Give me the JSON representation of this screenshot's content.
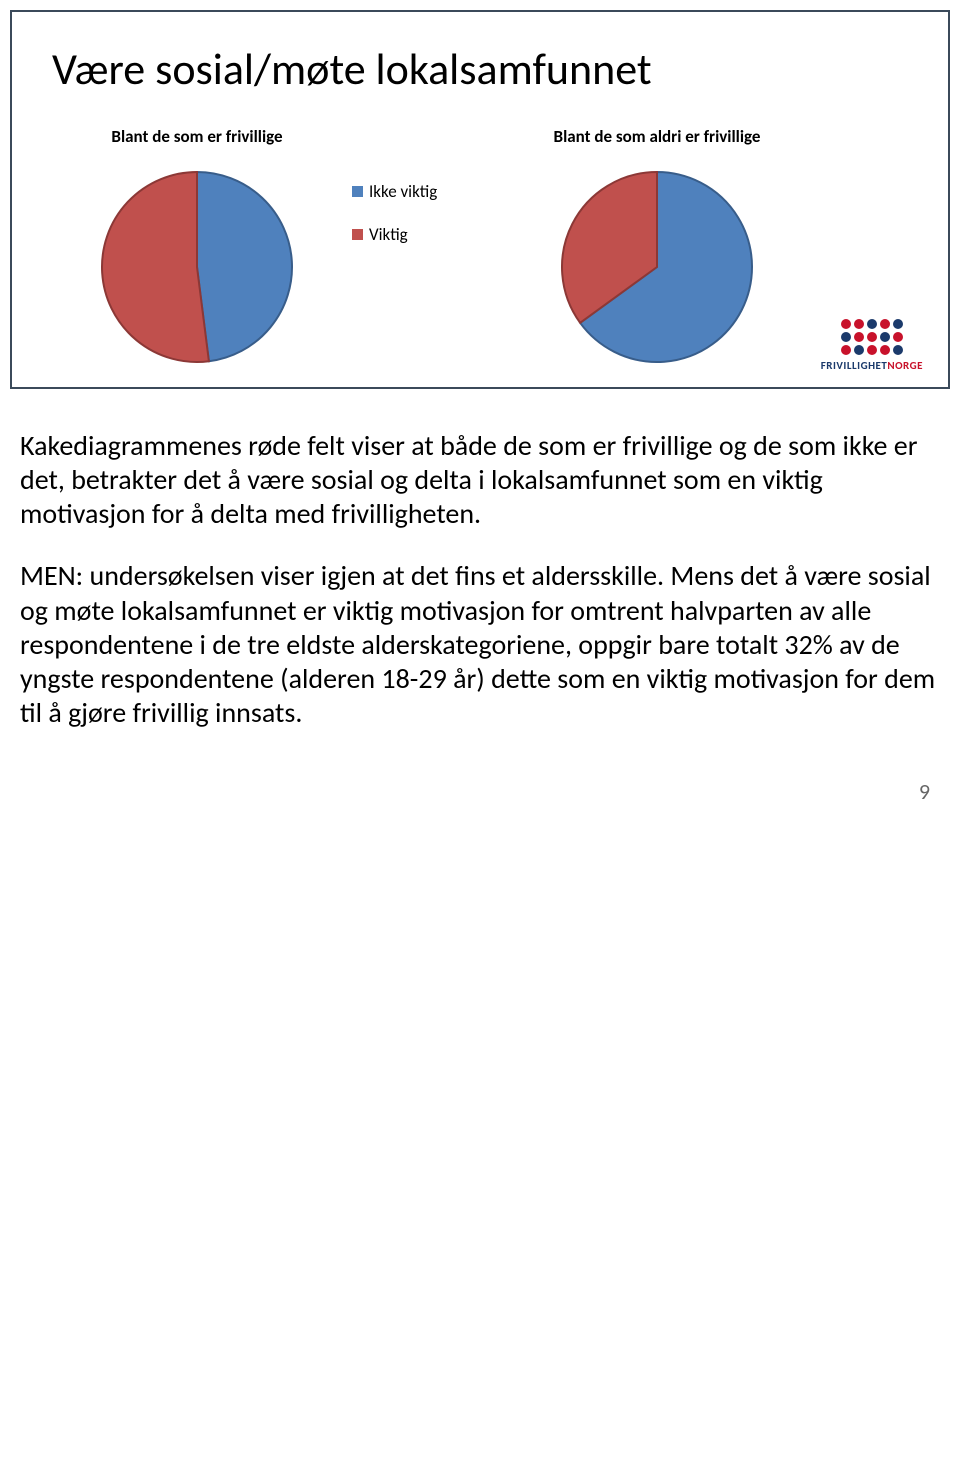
{
  "slide": {
    "title": "Være sosial/møte lokalsamfunnet",
    "title_fontsize": 44,
    "title_color": "#000000",
    "border_color": "#3b4a5a",
    "background": "#ffffff"
  },
  "chart1": {
    "type": "pie",
    "title": "Blant de som er frivillige",
    "title_fontsize": 17,
    "title_weight": 700,
    "values": [
      48,
      52
    ],
    "labels": [
      "Ikke viktig",
      "Viktig"
    ],
    "colors": [
      "#4f81bd",
      "#c0504d"
    ],
    "border_color": "#385d8a",
    "border_color2": "#8c3836",
    "radius": 95,
    "stroke_width": 2
  },
  "chart2": {
    "type": "pie",
    "title": "Blant de som aldri er frivillige",
    "title_fontsize": 17,
    "title_weight": 700,
    "values": [
      65,
      35
    ],
    "labels": [
      "Ikke viktig",
      "Viktig"
    ],
    "colors": [
      "#4f81bd",
      "#c0504d"
    ],
    "border_color": "#385d8a",
    "border_color2": "#8c3836",
    "radius": 95,
    "stroke_width": 2
  },
  "legend": {
    "items": [
      {
        "label": "Ikke viktig",
        "color": "#4f81bd"
      },
      {
        "label": "Viktig",
        "color": "#c0504d"
      }
    ],
    "fontsize": 17
  },
  "logo": {
    "text_part1": "FRIVILLIGHET",
    "text_part2": "NORGE",
    "color1": "#1b3a6b",
    "color2": "#c8122b",
    "dot_colors": [
      "#c8122b",
      "#c8122b",
      "#1b3a6b",
      "#c8122b",
      "#1b3a6b",
      "#1b3a6b",
      "#c8122b",
      "#c8122b",
      "#1b3a6b",
      "#c8122b",
      "#c8122b",
      "#1b3a6b",
      "#c8122b",
      "#c8122b",
      "#1b3a6b"
    ]
  },
  "body": {
    "p1": "Kakediagrammenes røde felt viser at  både de som er frivillige og de som ikke er det, betrakter det å være sosial og delta i lokalsamfunnet som en viktig motivasjon for å delta med frivilligheten.",
    "p2": "MEN: undersøkelsen viser igjen at det fins et aldersskille. Mens det å være sosial og møte lokalsamfunnet er viktig motivasjon for omtrent halvparten av alle respondentene i de tre eldste alderskategoriene, oppgir bare totalt 32% av de yngste respondentene (alderen 18-29 år) dette som en viktig motivasjon for dem til å gjøre frivillig innsats.",
    "fontsize": 28
  },
  "page_number": "9"
}
